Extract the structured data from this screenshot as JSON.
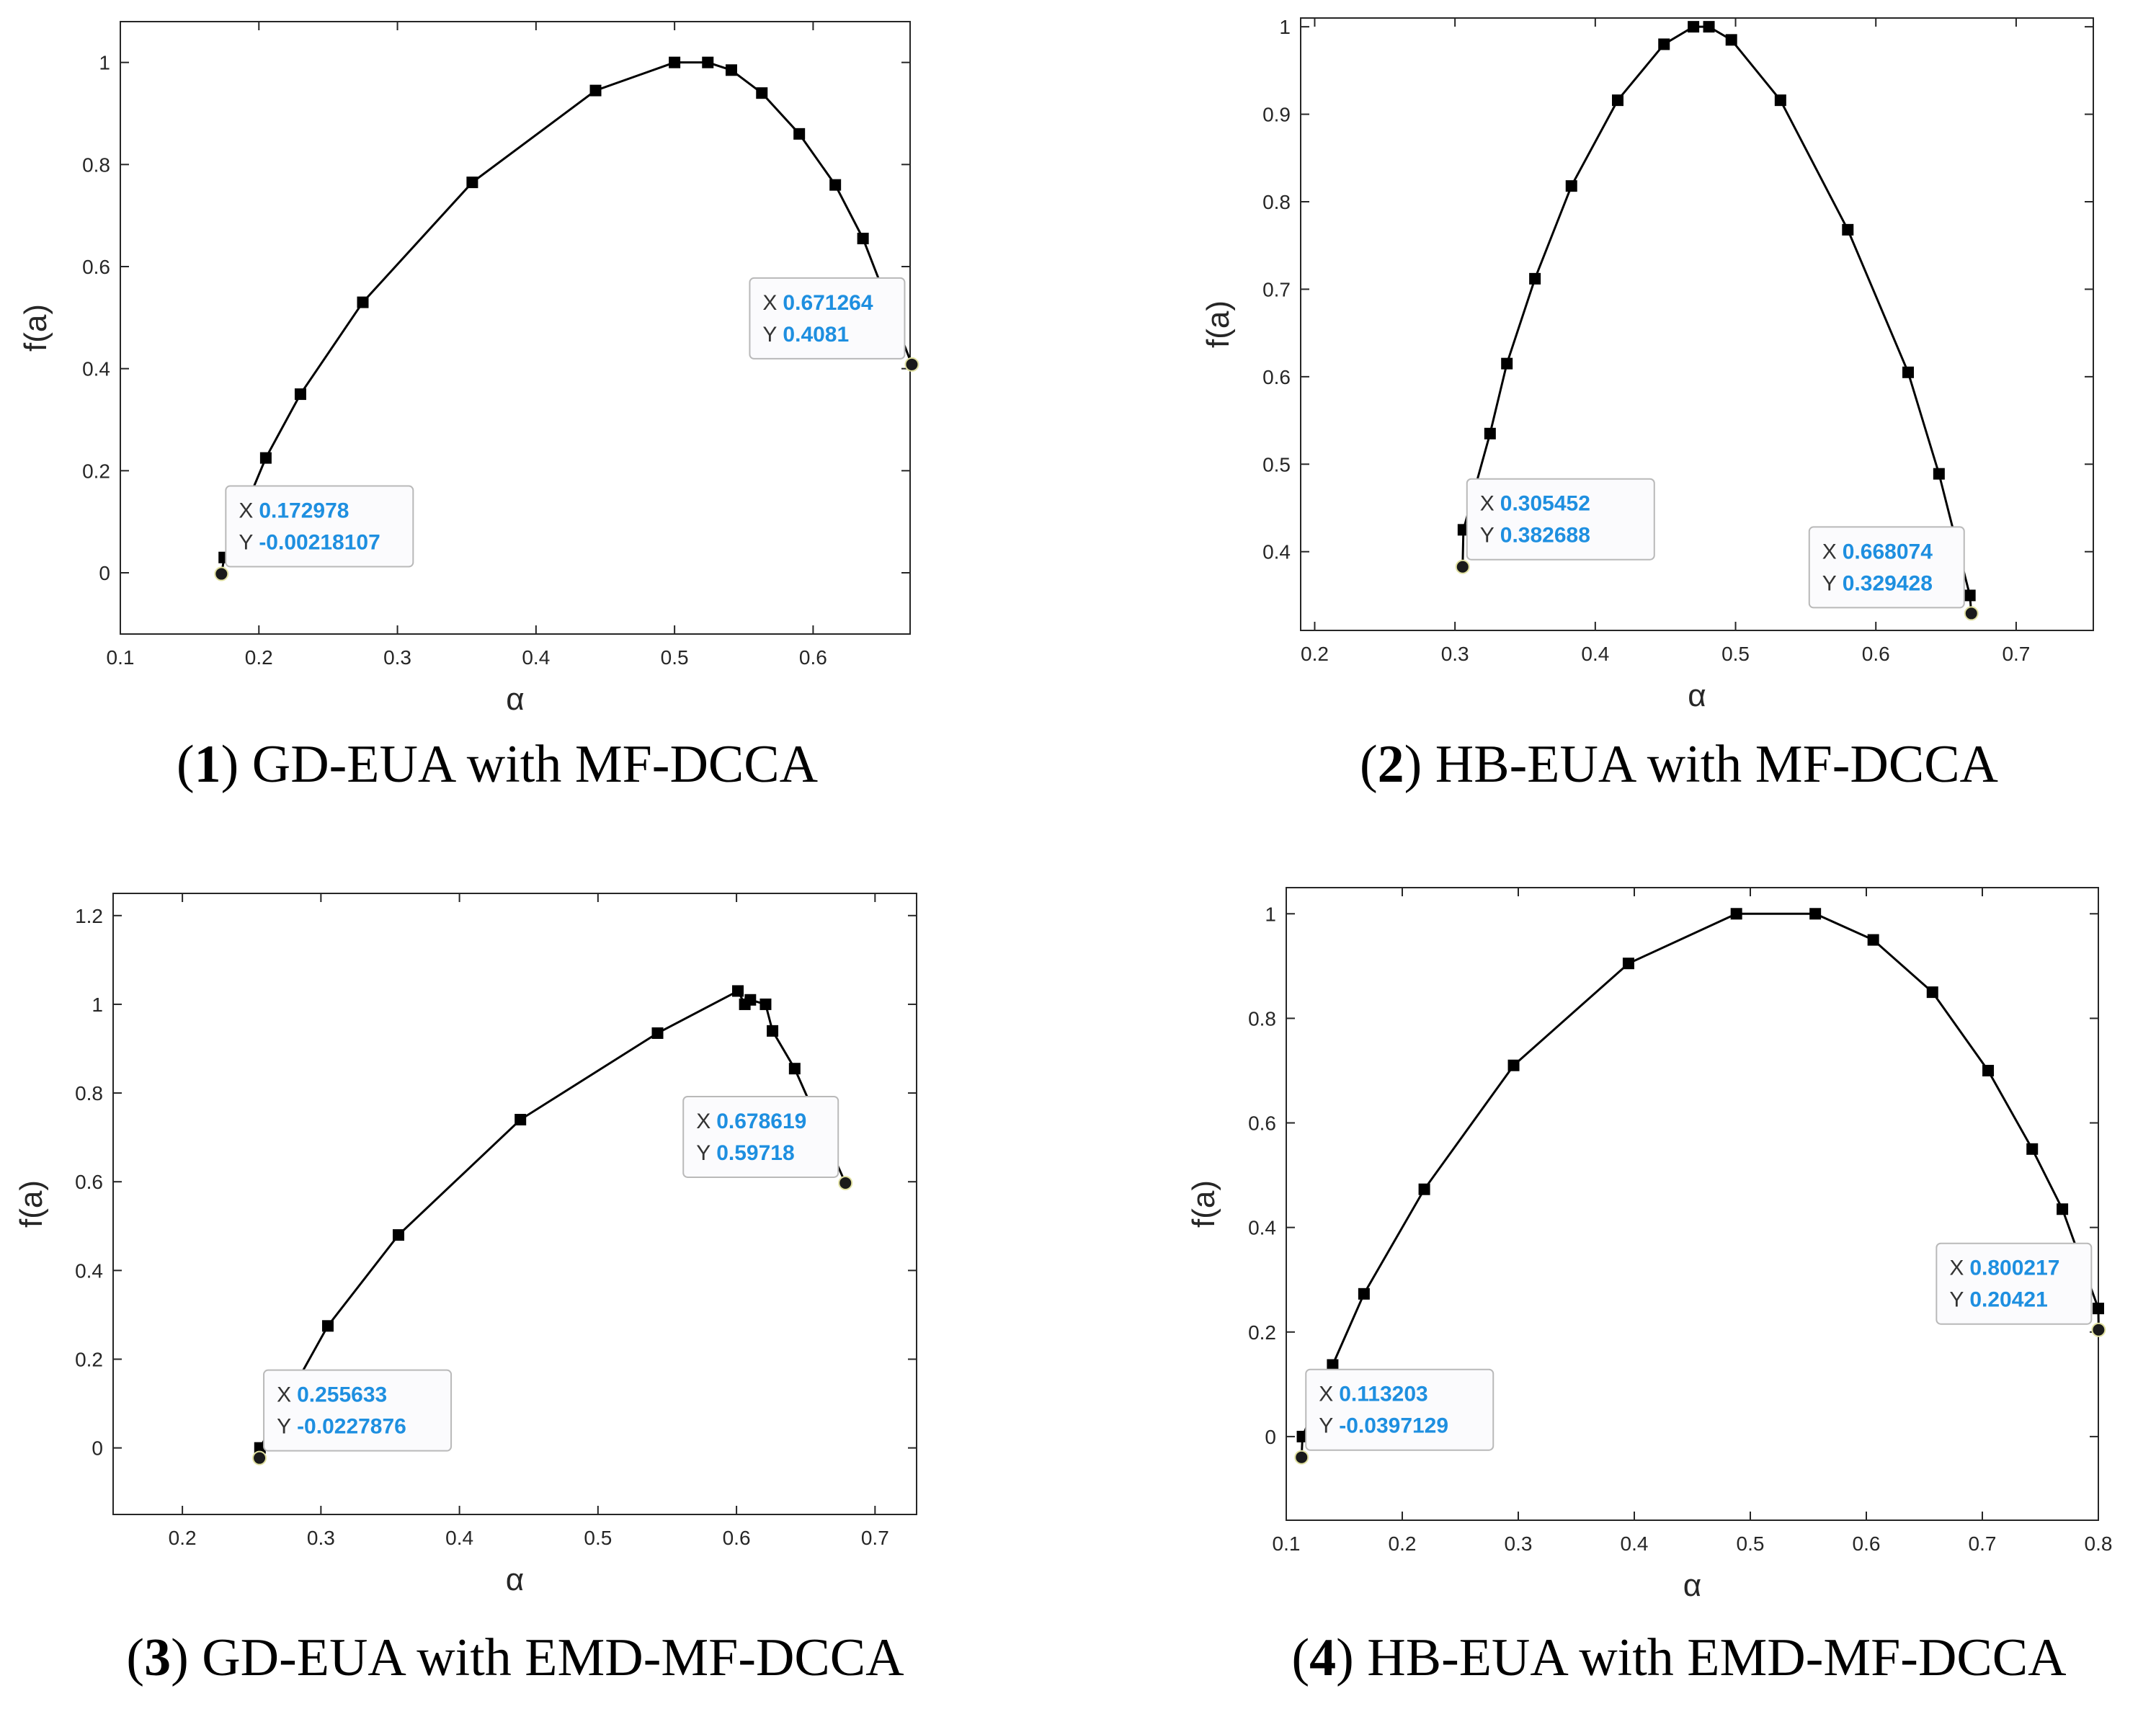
{
  "colors": {
    "line": "#000000",
    "datatip_value": "#1e8fe0",
    "axis": "#262626"
  },
  "chart_data": [
    {
      "type": "line",
      "caption_number": "1",
      "caption_text": "GD-EUA with MF-DCCA",
      "caption_prefix": "(",
      "caption_suffix": ")",
      "xlabel": "α",
      "ylabel": "f(a)",
      "xlim": [
        0.1,
        0.67
      ],
      "ylim": [
        -0.12,
        1.08
      ],
      "xticks": [
        0.1,
        0.2,
        0.3,
        0.4,
        0.5,
        0.6
      ],
      "xtick_labels": [
        "0.1",
        "0.2",
        "0.3",
        "0.4",
        "0.5",
        "0.6"
      ],
      "yticks": [
        0,
        0.2,
        0.4,
        0.6,
        0.8,
        1
      ],
      "ytick_labels": [
        "0",
        "0.2",
        "0.4",
        "0.6",
        "0.8",
        "1"
      ],
      "x": [
        0.172978,
        0.175,
        0.205,
        0.23,
        0.275,
        0.354,
        0.443,
        0.5,
        0.524,
        0.541,
        0.563,
        0.59,
        0.616,
        0.636,
        0.671264
      ],
      "y": [
        -0.00218107,
        0.03,
        0.225,
        0.35,
        0.53,
        0.765,
        0.945,
        1.0,
        1.0,
        0.985,
        0.94,
        0.86,
        0.76,
        0.655,
        0.4081
      ],
      "datatips": [
        {
          "x_label": "X",
          "y_label": "Y",
          "x_value": "0.172978",
          "y_value": "-0.00218107",
          "side": "right",
          "px": 0.172978,
          "py": -0.00218107
        },
        {
          "x_label": "X",
          "y_label": "Y",
          "x_value": "0.671264",
          "y_value": "0.4081",
          "side": "left",
          "px": 0.671264,
          "py": 0.4081
        }
      ]
    },
    {
      "type": "line",
      "caption_number": "2",
      "caption_text": "HB-EUA with MF-DCCA",
      "caption_prefix": "(",
      "caption_suffix": ")",
      "xlabel": "α",
      "ylabel": "f(a)",
      "xlim": [
        0.19,
        0.755
      ],
      "ylim": [
        0.31,
        1.01
      ],
      "xticks": [
        0.2,
        0.3,
        0.4,
        0.5,
        0.6,
        0.7
      ],
      "xtick_labels": [
        "0.2",
        "0.3",
        "0.4",
        "0.5",
        "0.6",
        "0.7"
      ],
      "yticks": [
        0.4,
        0.5,
        0.6,
        0.7,
        0.8,
        0.9,
        1
      ],
      "ytick_labels": [
        "0.4",
        "0.5",
        "0.6",
        "0.7",
        "0.8",
        "0.9",
        "1"
      ],
      "x": [
        0.305452,
        0.306,
        0.325,
        0.337,
        0.357,
        0.383,
        0.416,
        0.449,
        0.47,
        0.481,
        0.497,
        0.532,
        0.58,
        0.623,
        0.645,
        0.667,
        0.668074
      ],
      "y": [
        0.382688,
        0.425,
        0.535,
        0.615,
        0.712,
        0.818,
        0.916,
        0.98,
        1.0,
        1.0,
        0.985,
        0.916,
        0.768,
        0.605,
        0.489,
        0.35,
        0.329428
      ],
      "datatips": [
        {
          "x_label": "X",
          "y_label": "Y",
          "x_value": "0.305452",
          "y_value": "0.382688",
          "side": "right",
          "px": 0.305452,
          "py": 0.382688
        },
        {
          "x_label": "X",
          "y_label": "Y",
          "x_value": "0.668074",
          "y_value": "0.329428",
          "side": "left",
          "px": 0.668074,
          "py": 0.329428
        }
      ]
    },
    {
      "type": "line",
      "caption_number": "3",
      "caption_text": "GD-EUA with EMD-MF-DCCA",
      "caption_prefix": "(",
      "caption_suffix": ")",
      "xlabel": "α",
      "ylabel": "f(a)",
      "xlim": [
        0.15,
        0.73
      ],
      "ylim": [
        -0.15,
        1.25
      ],
      "xticks": [
        0.2,
        0.3,
        0.4,
        0.5,
        0.6,
        0.7
      ],
      "xtick_labels": [
        "0.2",
        "0.3",
        "0.4",
        "0.5",
        "0.6",
        "0.7"
      ],
      "yticks": [
        0,
        0.2,
        0.4,
        0.6,
        0.8,
        1,
        1.2
      ],
      "ytick_labels": [
        "0",
        "0.2",
        "0.4",
        "0.6",
        "0.8",
        "1",
        "1.2"
      ],
      "x": [
        0.255633,
        0.256,
        0.305,
        0.356,
        0.444,
        0.543,
        0.601,
        0.606,
        0.61,
        0.621,
        0.626,
        0.642,
        0.678619
      ],
      "y": [
        -0.0227876,
        0.0,
        0.275,
        0.48,
        0.74,
        0.935,
        1.03,
        1.0,
        1.01,
        1.0,
        0.94,
        0.855,
        0.59718
      ],
      "datatips": [
        {
          "x_label": "X",
          "y_label": "Y",
          "x_value": "0.255633",
          "y_value": "-0.0227876",
          "side": "right",
          "px": 0.255633,
          "py": -0.0227876
        },
        {
          "x_label": "X",
          "y_label": "Y",
          "x_value": "0.678619",
          "y_value": "0.59718",
          "side": "left",
          "px": 0.678619,
          "py": 0.59718
        }
      ]
    },
    {
      "type": "line",
      "caption_number": "4",
      "caption_text": "HB-EUA with EMD-MF-DCCA",
      "caption_prefix": "(",
      "caption_suffix": ")",
      "xlabel": "α",
      "ylabel": "f(a)",
      "xlim": [
        0.1,
        0.8
      ],
      "ylim": [
        -0.16,
        1.05
      ],
      "xticks": [
        0.1,
        0.2,
        0.3,
        0.4,
        0.5,
        0.6,
        0.7,
        0.8
      ],
      "xtick_labels": [
        "0.1",
        "0.2",
        "0.3",
        "0.4",
        "0.5",
        "0.6",
        "0.7",
        "0.8"
      ],
      "yticks": [
        0,
        0.2,
        0.4,
        0.6,
        0.8,
        1
      ],
      "ytick_labels": [
        "0",
        "0.2",
        "0.4",
        "0.6",
        "0.8",
        "1"
      ],
      "x": [
        0.113203,
        0.114,
        0.14,
        0.167,
        0.219,
        0.296,
        0.395,
        0.488,
        0.556,
        0.606,
        0.657,
        0.705,
        0.743,
        0.769,
        0.8,
        0.800217
      ],
      "y": [
        -0.0397129,
        0.0,
        0.137,
        0.273,
        0.473,
        0.71,
        0.905,
        1.0,
        1.0,
        0.95,
        0.85,
        0.7,
        0.55,
        0.435,
        0.245,
        0.20421
      ],
      "datatips": [
        {
          "x_label": "X",
          "y_label": "Y",
          "x_value": "0.113203",
          "y_value": "-0.0397129",
          "side": "right",
          "px": 0.113203,
          "py": -0.0397129
        },
        {
          "x_label": "X",
          "y_label": "Y",
          "x_value": "0.800217",
          "y_value": "0.20421",
          "side": "left",
          "px": 0.800217,
          "py": 0.20421
        }
      ]
    }
  ]
}
